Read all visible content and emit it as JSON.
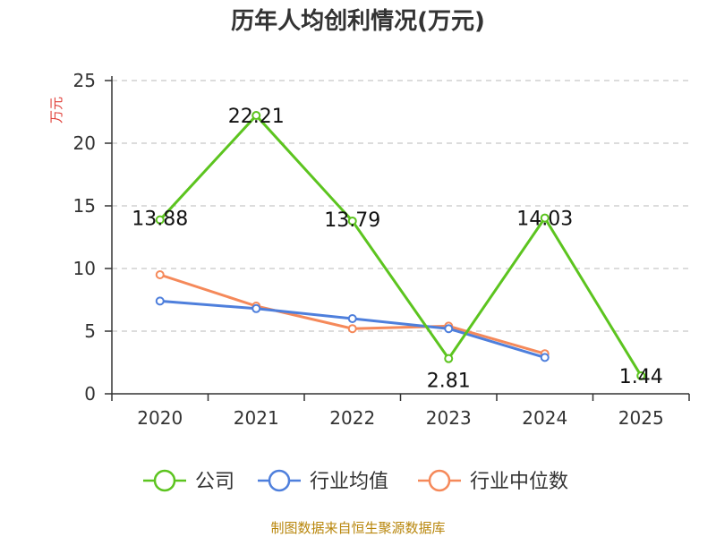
{
  "chart_data": {
    "type": "line",
    "title": "历年人均创利情况(万元)",
    "ylabel": "万元",
    "xlabel": "",
    "ylim": [
      0,
      25
    ],
    "yticks": [
      0,
      5,
      10,
      15,
      20,
      25
    ],
    "grid": true,
    "legend_position": "bottom",
    "categories": [
      "2020",
      "2021",
      "2022",
      "2023",
      "2024",
      "2025"
    ],
    "series": [
      {
        "name": "公司",
        "color": "#5cc41f",
        "values": [
          13.88,
          22.21,
          13.79,
          2.81,
          14.03,
          1.44
        ],
        "labels": [
          "13.88",
          "22.21",
          "13.79",
          "2.81",
          "14.03",
          "1.44"
        ]
      },
      {
        "name": "行业均值",
        "color": "#4e7fdc",
        "values": [
          7.4,
          6.8,
          6.0,
          5.2,
          2.9,
          null
        ]
      },
      {
        "name": "行业中位数",
        "color": "#f5895a",
        "values": [
          9.5,
          7.0,
          5.2,
          5.4,
          3.2,
          null
        ]
      }
    ]
  },
  "footer": "制图数据来自恒生聚源数据库"
}
